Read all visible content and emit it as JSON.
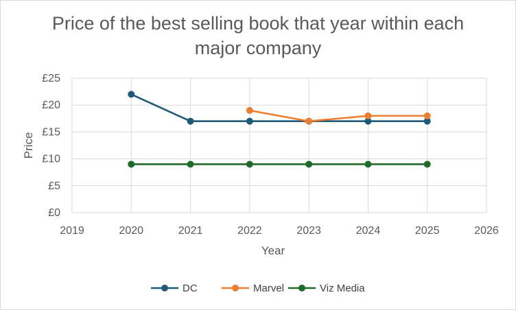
{
  "chart_data": {
    "type": "line",
    "title_line1": "Price of the best selling book that year within each",
    "title_line2": "major company",
    "xlabel": "Year",
    "ylabel": "Price",
    "xlim": [
      2019,
      2026
    ],
    "ylim": [
      0,
      25
    ],
    "x_ticks": [
      "2019",
      "2020",
      "2021",
      "2022",
      "2023",
      "2024",
      "2025",
      "2026"
    ],
    "y_ticks": [
      "£0",
      "£5",
      "£10",
      "£15",
      "£20",
      "£25"
    ],
    "grid": true,
    "legend_position": "bottom",
    "series": [
      {
        "name": "DC",
        "color": "#1f5a7a",
        "x": [
          2020,
          2021,
          2022,
          2023,
          2024,
          2025
        ],
        "values": [
          22,
          17,
          17,
          17,
          17,
          17
        ]
      },
      {
        "name": "Marvel",
        "color": "#ed7d31",
        "x": [
          2022,
          2023,
          2024,
          2025
        ],
        "values": [
          19,
          17,
          18,
          18
        ]
      },
      {
        "name": "Viz Media",
        "color": "#1e6b2a",
        "x": [
          2020,
          2021,
          2022,
          2023,
          2024,
          2025
        ],
        "values": [
          9,
          9,
          9,
          9,
          9,
          9
        ]
      }
    ]
  }
}
